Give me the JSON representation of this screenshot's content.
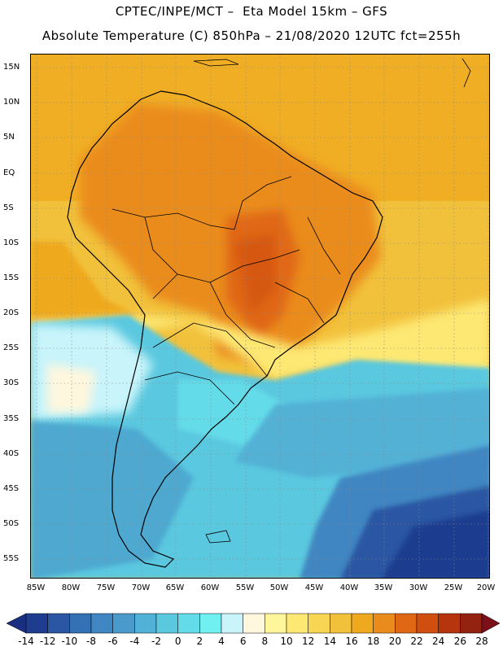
{
  "header": {
    "line1": "CPTEC/INPE/MCT –  Eta Model 15km – GFS",
    "line2": "Absolute Temperature (C) 850hPa – 21/08/2020 12UTC fct=255h"
  },
  "axes": {
    "lat_labels": [
      "15N",
      "10N",
      "5N",
      "EQ",
      "5S",
      "10S",
      "15S",
      "20S",
      "25S",
      "30S",
      "35S",
      "40S",
      "45S",
      "50S",
      "55S"
    ],
    "lon_labels": [
      "85W",
      "80W",
      "75W",
      "70W",
      "65W",
      "60W",
      "55W",
      "50W",
      "45W",
      "40W",
      "35W",
      "30W",
      "25W",
      "20W"
    ]
  },
  "colorbar": {
    "labels": [
      "-14",
      "-12",
      "-10",
      "-8",
      "-6",
      "-4",
      "-2",
      "0",
      "2",
      "4",
      "6",
      "8",
      "10",
      "12",
      "14",
      "16",
      "18",
      "20",
      "22",
      "24",
      "26",
      "28"
    ],
    "colors": [
      "#1e3d8f",
      "#2a56a3",
      "#3470b4",
      "#3f86c2",
      "#4a9bcb",
      "#52b1d6",
      "#5ac8df",
      "#63dbe8",
      "#70f0f0",
      "#c8f4fa",
      "#fff7dd",
      "#fff59b",
      "#fde873",
      "#f8d653",
      "#f2c13b",
      "#efa91f",
      "#ea8c1d",
      "#e06814",
      "#cf4e10",
      "#b6350e",
      "#932210"
    ],
    "under_color": "#1a2f80",
    "over_color": "#7b0f1a"
  },
  "map": {
    "ocean_north_color": "#f2c13b",
    "land_hot_color": "#ea8c1d",
    "core_color": "#e06814",
    "south_cold_color": "#1e3d8f",
    "region": "South America"
  }
}
